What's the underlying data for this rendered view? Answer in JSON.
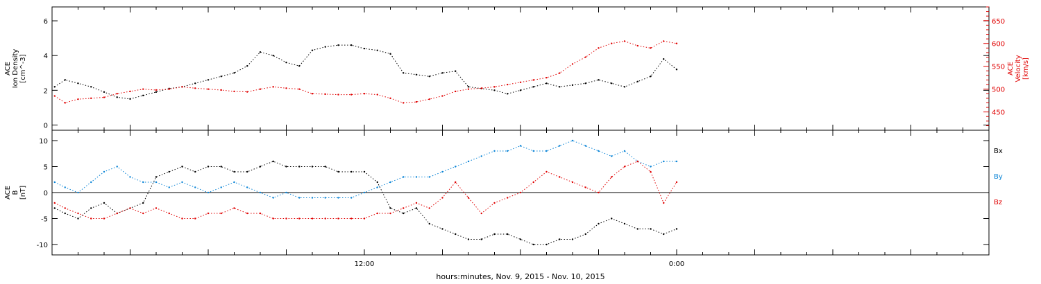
{
  "x_axis": {
    "label": "hours:minutes, Nov.  9, 2015 - Nov. 10, 2015",
    "tick_labels": [
      {
        "x": 12,
        "text": "12:00"
      },
      {
        "x": 24,
        "text": "0:00"
      }
    ],
    "range_hours": [
      0,
      36
    ]
  },
  "chart_data": [
    {
      "type": "scatter",
      "title": "",
      "ylabel": "ACE\nIon Density\n[cm^-3]",
      "ylim": [
        -0.3,
        6.8
      ],
      "yticks": [
        0,
        2,
        4,
        6
      ],
      "y2label": "ACE\nVelocity\n[km/s]",
      "y2lim": [
        410,
        680
      ],
      "y2ticks": [
        450,
        500,
        550,
        600,
        650
      ],
      "series": [
        {
          "name": "",
          "color": "#000000",
          "x_hours": [
            0.1,
            0.5,
            1.0,
            1.5,
            2.0,
            2.5,
            3.0,
            3.5,
            4.0,
            4.5,
            5.0,
            5.5,
            6.0,
            6.5,
            7.0,
            7.5,
            8.0,
            8.5,
            9.0,
            9.5,
            10.0,
            10.5,
            11.0,
            11.5,
            12.0,
            12.5,
            13.0,
            13.5,
            14.0,
            14.5,
            15.0,
            15.5,
            16.0,
            16.5,
            17.0,
            17.5,
            18.0,
            18.5,
            19.0,
            19.5,
            20.0,
            20.5,
            21.0,
            21.5,
            22.0,
            22.5,
            23.0,
            23.5,
            24.0
          ],
          "y": [
            2.2,
            2.6,
            2.4,
            2.2,
            1.9,
            1.6,
            1.5,
            1.7,
            1.9,
            2.1,
            2.2,
            2.4,
            2.6,
            2.8,
            3.0,
            3.4,
            4.2,
            4.0,
            3.6,
            3.4,
            4.3,
            4.5,
            4.6,
            4.6,
            4.4,
            4.3,
            4.1,
            3.0,
            2.9,
            2.8,
            3.0,
            3.1,
            2.2,
            2.1,
            2.0,
            1.8,
            2.0,
            2.2,
            2.4,
            2.2,
            2.3,
            2.4,
            2.6,
            2.4,
            2.2,
            2.5,
            2.8,
            3.8,
            3.2
          ],
          "y_axis": "left"
        },
        {
          "name": "",
          "color": "#e00000",
          "x_hours": [
            0.1,
            0.5,
            1.0,
            1.5,
            2.0,
            2.5,
            3.0,
            3.5,
            4.0,
            4.5,
            5.0,
            5.5,
            6.0,
            6.5,
            7.0,
            7.5,
            8.0,
            8.5,
            9.0,
            9.5,
            10.0,
            10.5,
            11.0,
            11.5,
            12.0,
            12.5,
            13.0,
            13.5,
            14.0,
            14.5,
            15.0,
            15.5,
            16.0,
            16.5,
            17.0,
            17.5,
            18.0,
            18.5,
            19.0,
            19.5,
            20.0,
            20.5,
            21.0,
            21.5,
            22.0,
            22.5,
            23.0,
            23.5,
            24.0
          ],
          "y": [
            485,
            470,
            478,
            480,
            482,
            490,
            495,
            500,
            498,
            500,
            505,
            502,
            500,
            498,
            495,
            494,
            500,
            505,
            502,
            500,
            490,
            489,
            488,
            488,
            490,
            488,
            480,
            470,
            472,
            478,
            485,
            495,
            500,
            502,
            505,
            510,
            515,
            520,
            525,
            535,
            555,
            570,
            590,
            600,
            605,
            595,
            590,
            605,
            600
          ],
          "y_axis": "right"
        }
      ]
    },
    {
      "type": "scatter",
      "title": "",
      "ylabel": "ACE\nB\n[nT]",
      "ylim": [
        -12,
        12
      ],
      "yticks": [
        -10,
        -5,
        0,
        5,
        10
      ],
      "legend": [
        {
          "name": "Bx",
          "color": "#000000"
        },
        {
          "name": "By",
          "color": "#0a84d6"
        },
        {
          "name": "Bz",
          "color": "#e00000"
        }
      ],
      "series": [
        {
          "name": "Bx",
          "color": "#000000",
          "x_hours": [
            0.1,
            0.5,
            1.0,
            1.5,
            2.0,
            2.5,
            3.0,
            3.5,
            4.0,
            4.5,
            5.0,
            5.5,
            6.0,
            6.5,
            7.0,
            7.5,
            8.0,
            8.5,
            9.0,
            9.5,
            10.0,
            10.5,
            11.0,
            11.5,
            12.0,
            12.5,
            13.0,
            13.5,
            14.0,
            14.5,
            15.0,
            15.5,
            16.0,
            16.5,
            17.0,
            17.5,
            18.0,
            18.5,
            19.0,
            19.5,
            20.0,
            20.5,
            21.0,
            21.5,
            22.0,
            22.5,
            23.0,
            23.5,
            24.0
          ],
          "y": [
            -3,
            -4,
            -5,
            -3,
            -2,
            -4,
            -3,
            -2,
            3,
            4,
            5,
            4,
            5,
            5,
            4,
            4,
            5,
            6,
            5,
            5,
            5,
            5,
            4,
            4,
            4,
            2,
            -3,
            -4,
            -3,
            -6,
            -7,
            -8,
            -9,
            -9,
            -8,
            -8,
            -9,
            -10,
            -10,
            -9,
            -9,
            -8,
            -6,
            -5,
            -6,
            -7,
            -7,
            -8,
            -7
          ],
          "y_axis": "left"
        },
        {
          "name": "By",
          "color": "#0a84d6",
          "x_hours": [
            0.1,
            0.5,
            1.0,
            1.5,
            2.0,
            2.5,
            3.0,
            3.5,
            4.0,
            4.5,
            5.0,
            5.5,
            6.0,
            6.5,
            7.0,
            7.5,
            8.0,
            8.5,
            9.0,
            9.5,
            10.0,
            10.5,
            11.0,
            11.5,
            12.0,
            12.5,
            13.0,
            13.5,
            14.0,
            14.5,
            15.0,
            15.5,
            16.0,
            16.5,
            17.0,
            17.5,
            18.0,
            18.5,
            19.0,
            19.5,
            20.0,
            20.5,
            21.0,
            21.5,
            22.0,
            22.5,
            23.0,
            23.5,
            24.0
          ],
          "y": [
            2,
            1,
            0,
            2,
            4,
            5,
            3,
            2,
            2,
            1,
            2,
            1,
            0,
            1,
            2,
            1,
            0,
            -1,
            0,
            -1,
            -1,
            -1,
            -1,
            -1,
            0,
            1,
            2,
            3,
            3,
            3,
            4,
            5,
            6,
            7,
            8,
            8,
            9,
            8,
            8,
            9,
            10,
            9,
            8,
            7,
            8,
            6,
            5,
            6,
            6
          ],
          "y_axis": "left"
        },
        {
          "name": "Bz",
          "color": "#e00000",
          "x_hours": [
            0.1,
            0.5,
            1.0,
            1.5,
            2.0,
            2.5,
            3.0,
            3.5,
            4.0,
            4.5,
            5.0,
            5.5,
            6.0,
            6.5,
            7.0,
            7.5,
            8.0,
            8.5,
            9.0,
            9.5,
            10.0,
            10.5,
            11.0,
            11.5,
            12.0,
            12.5,
            13.0,
            13.5,
            14.0,
            14.5,
            15.0,
            15.5,
            16.0,
            16.5,
            17.0,
            17.5,
            18.0,
            18.5,
            19.0,
            19.5,
            20.0,
            20.5,
            21.0,
            21.5,
            22.0,
            22.5,
            23.0,
            23.5,
            24.0
          ],
          "y": [
            -2,
            -3,
            -4,
            -5,
            -5,
            -4,
            -3,
            -4,
            -3,
            -4,
            -5,
            -5,
            -4,
            -4,
            -3,
            -4,
            -4,
            -5,
            -5,
            -5,
            -5,
            -5,
            -5,
            -5,
            -5,
            -4,
            -4,
            -3,
            -2,
            -3,
            -1,
            2,
            -1,
            -4,
            -2,
            -1,
            0,
            2,
            4,
            3,
            2,
            1,
            0,
            3,
            5,
            6,
            4,
            -2,
            2
          ],
          "y_axis": "left"
        }
      ]
    }
  ]
}
